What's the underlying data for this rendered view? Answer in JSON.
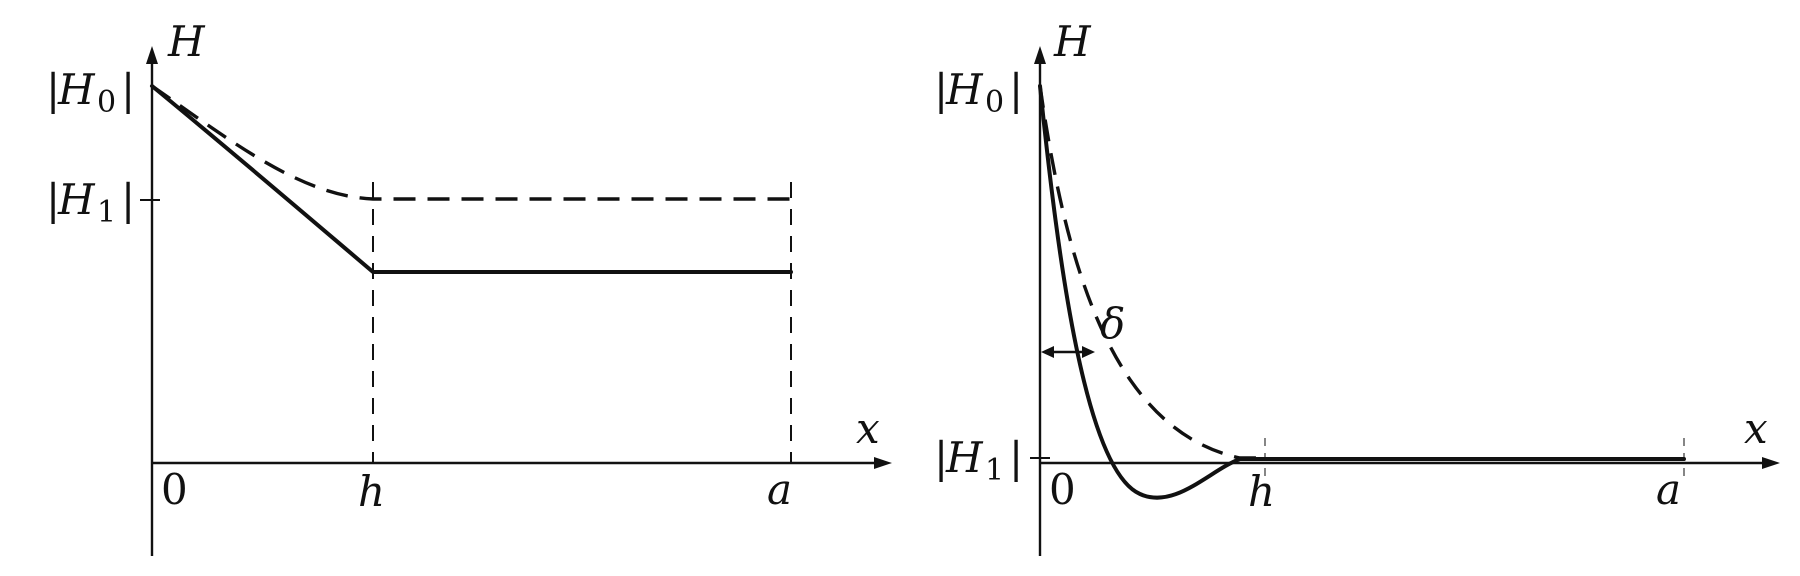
{
  "panels": [
    {
      "id": "left",
      "labels": {
        "y_axis": "H",
        "x_axis": "x",
        "h0_bar_left": "|",
        "h0_base": "H",
        "h0_sub": "0",
        "h0_bar_right": "|",
        "h1_bar_left": "|",
        "h1_base": "H",
        "h1_sub": "1",
        "h1_bar_right": "|",
        "origin": "0",
        "h_mark": "h",
        "a_mark": "a"
      }
    },
    {
      "id": "right",
      "labels": {
        "y_axis": "H",
        "x_axis": "x",
        "h0_bar_left": "|",
        "h0_base": "H",
        "h0_sub": "0",
        "h0_bar_right": "|",
        "h1_bar_left": "|",
        "h1_base": "H",
        "h1_sub": "1",
        "h1_bar_right": "|",
        "origin": "0",
        "h_mark": "h",
        "a_mark": "a",
        "delta": "δ"
      }
    }
  ],
  "colors": {
    "ink": "#111111",
    "background": "#ffffff"
  }
}
